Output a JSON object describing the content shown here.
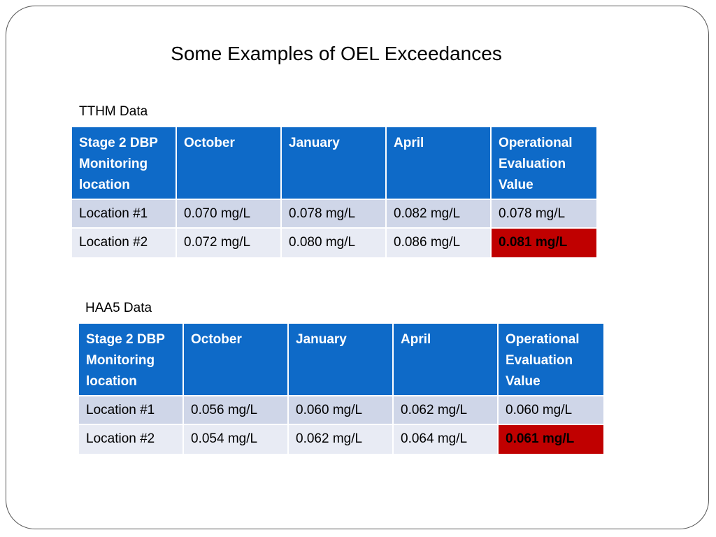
{
  "title": "Some Examples of OEL Exceedances",
  "colors": {
    "header_bg": "#0e6ac8",
    "row_odd_bg": "#cfd6e8",
    "row_even_bg": "#e8ebf4",
    "exceedance_bg": "#c00000"
  },
  "tables": [
    {
      "label": "TTHM Data",
      "headers": [
        "Stage 2 DBP Monitoring location",
        "October",
        "January",
        "April",
        "Operational Evaluation Value"
      ],
      "rows": [
        [
          "Location #1",
          "0.070 mg/L",
          "0.078 mg/L",
          "0.082 mg/L",
          "0.078 mg/L"
        ],
        [
          "Location #2",
          "0.072 mg/L",
          "0.080 mg/L",
          "0.086 mg/L",
          "0.081 mg/L"
        ]
      ],
      "highlight": {
        "row": 1,
        "col": 4
      }
    },
    {
      "label": "HAA5 Data",
      "headers": [
        "Stage 2 DBP Monitoring location",
        "October",
        "January",
        "April",
        "Operational Evaluation Value"
      ],
      "rows": [
        [
          "Location #1",
          "0.056 mg/L",
          "0.060 mg/L",
          "0.062 mg/L",
          "0.060 mg/L"
        ],
        [
          "Location #2",
          "0.054 mg/L",
          "0.062 mg/L",
          "0.064 mg/L",
          "0.061 mg/L"
        ]
      ],
      "highlight": {
        "row": 1,
        "col": 4
      }
    }
  ]
}
